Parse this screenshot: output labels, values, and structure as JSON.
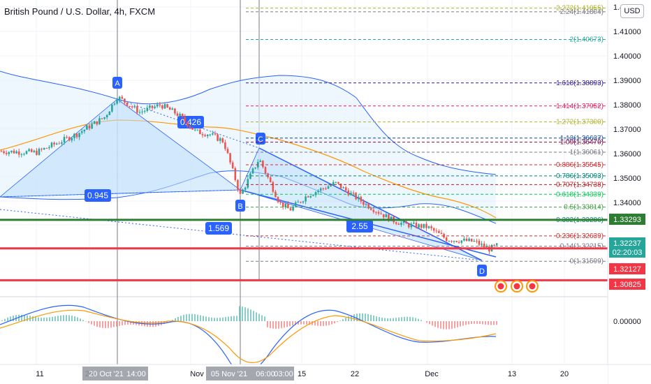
{
  "header": {
    "title": "British Pound / U.S. Dollar, 4h, FXCM",
    "currency_button": "USD"
  },
  "price_axis": {
    "ticks": [
      "1.42000",
      "1.41000",
      "1.40000",
      "1.39000",
      "1.38000",
      "1.37000",
      "1.36000",
      "1.35000",
      "1.34000",
      "0.00000"
    ],
    "labels": [
      {
        "text": "1.33293",
        "color": "#2e7d32"
      },
      {
        "text": "1.32237",
        "color": "#26a69a"
      },
      {
        "text": "02:20:03",
        "color": "#26a69a"
      },
      {
        "text": "1.32127",
        "color": "#f23645"
      },
      {
        "text": "1.30825",
        "color": "#f23645"
      }
    ]
  },
  "time_axis": {
    "ticks": [
      "11",
      "20",
      "Nov",
      "15",
      "22",
      "Dec",
      "13",
      "20"
    ],
    "cursor_labels": [
      "20 Oct '21",
      "14:00",
      "05 Nov '21",
      "06:00",
      "03:00"
    ]
  },
  "fib_levels": [
    {
      "ratio": "2.272",
      "price": "1.41955",
      "color": "#afb42b"
    },
    {
      "ratio": "2.24",
      "price": "1.41804",
      "color": "#787b86"
    },
    {
      "ratio": "2",
      "price": "1.40673",
      "color": "#26a69a"
    },
    {
      "ratio": "1.618",
      "price": "1.38893",
      "color": "#311b92"
    },
    {
      "ratio": "1.414",
      "price": "1.37952",
      "color": "#e91e63"
    },
    {
      "ratio": "1.272",
      "price": "1.37300",
      "color": "#afb42b"
    },
    {
      "ratio": "1.13",
      "price": "1.36637",
      "color": "#0d47a1"
    },
    {
      "ratio": "1.09",
      "price": "1.36470",
      "color": "#880e4f"
    },
    {
      "ratio": "1",
      "price": "1.36061",
      "color": "#787b86"
    },
    {
      "ratio": "0.886",
      "price": "1.35545",
      "color": "#d32f2f"
    },
    {
      "ratio": "0.786",
      "price": "1.35093",
      "color": "#00897b"
    },
    {
      "ratio": "0.707",
      "price": "1.34738",
      "color": "#b71c1c"
    },
    {
      "ratio": "0.618",
      "price": "1.34339",
      "color": "#00c853"
    },
    {
      "ratio": "0.5",
      "price": "1.33814",
      "color": "#43a047"
    },
    {
      "ratio": "0.382",
      "price": "1.33286",
      "color": "#00897b"
    },
    {
      "ratio": "0.236",
      "price": "1.32639",
      "color": "#d32f2f"
    },
    {
      "ratio": "0.14",
      "price": "1.32215",
      "color": "#787b86"
    },
    {
      "ratio": "0",
      "price": "1.31599",
      "color": "#787b86"
    }
  ],
  "pattern_points": [
    "A",
    "B",
    "C",
    "D"
  ],
  "pattern_ratios": [
    "0.426",
    "0.945",
    "1.569",
    "2.55"
  ],
  "colors": {
    "up": "#26a69a",
    "down": "#ef5350",
    "bollinger": "#2962ff",
    "ma": "#ff9800",
    "support_green": "#2e7d32",
    "support_red": "#f23645",
    "pattern_fill": "#bbdefb",
    "pattern_label": "#2962ff"
  },
  "chart_data": {
    "type": "candlestick",
    "symbol": "GBPUSD",
    "timeframe": "4h",
    "close_path": [
      {
        "x": "Oct 08",
        "y": 1.361
      },
      {
        "x": "Oct 11",
        "y": 1.3605
      },
      {
        "x": "Oct 14",
        "y": 1.368
      },
      {
        "x": "Oct 18",
        "y": 1.375
      },
      {
        "x": "Oct 20",
        "y": 1.3833
      },
      {
        "x": "Oct 22",
        "y": 1.377
      },
      {
        "x": "Oct 25",
        "y": 1.38
      },
      {
        "x": "Oct 27",
        "y": 1.376
      },
      {
        "x": "Oct 29",
        "y": 1.369
      },
      {
        "x": "Nov 01",
        "y": 1.368
      },
      {
        "x": "Nov 03",
        "y": 1.365
      },
      {
        "x": "Nov 05",
        "y": 1.343
      },
      {
        "x": "Nov 08",
        "y": 1.358
      },
      {
        "x": "Nov 10",
        "y": 1.34
      },
      {
        "x": "Nov 12",
        "y": 1.337
      },
      {
        "x": "Nov 15",
        "y": 1.343
      },
      {
        "x": "Nov 18",
        "y": 1.348
      },
      {
        "x": "Nov 22",
        "y": 1.34
      },
      {
        "x": "Nov 25",
        "y": 1.333
      },
      {
        "x": "Nov 29",
        "y": 1.331
      },
      {
        "x": "Dec 01",
        "y": 1.33
      },
      {
        "x": "Dec 03",
        "y": 1.325
      },
      {
        "x": "Dec 06",
        "y": 1.324
      },
      {
        "x": "Dec 08",
        "y": 1.321
      },
      {
        "x": "Dec 09",
        "y": 1.3224
      }
    ],
    "last_price": 1.32237,
    "horizontal_levels": [
      1.33293,
      1.32127,
      1.30825
    ],
    "ylim": [
      1.304,
      1.424
    ]
  }
}
